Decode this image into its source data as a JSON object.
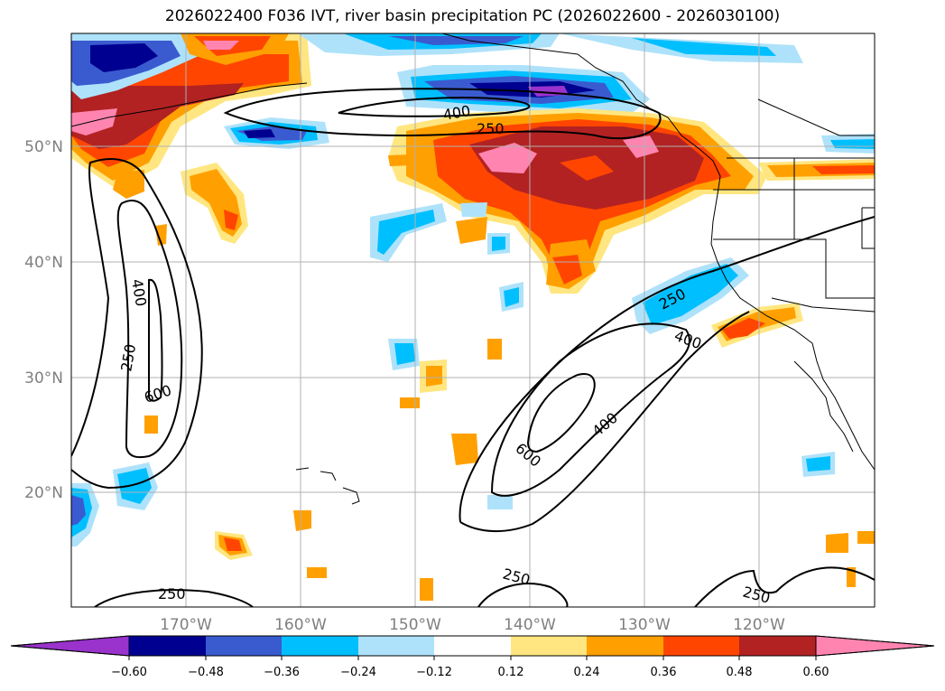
{
  "title": "2026022400 F036 IVT, river basin precipitation PC (2026022600 - 2026030100)",
  "lat_labels": [
    "50°N",
    "40°N",
    "30°N",
    "20°N"
  ],
  "lon_labels": [
    "170°W",
    "160°W",
    "150°W",
    "140°W",
    "130°W",
    "120°W"
  ],
  "colorbar": {
    "colors": [
      "#9933cc",
      "#000090",
      "#3a5bd0",
      "#00bfff",
      "#aee2fa",
      "#ffffff",
      "#ffe680",
      "#ffa000",
      "#ff4500",
      "#b22222",
      "#ff85b0"
    ],
    "tick_labels": [
      "−0.60",
      "−0.48",
      "−0.36",
      "−0.24",
      "−0.12",
      "0.12",
      "0.24",
      "0.36",
      "0.48",
      "0.60"
    ]
  },
  "contour_labels": {
    "north_400": "400",
    "north_250": "250",
    "west_400": "400",
    "west_250": "250",
    "west_600": "600",
    "east_250": "250",
    "east_400a": "400",
    "east_400b": "400",
    "east_600": "600",
    "south_250a": "250",
    "south_250b": "250",
    "south_250c": "250"
  }
}
